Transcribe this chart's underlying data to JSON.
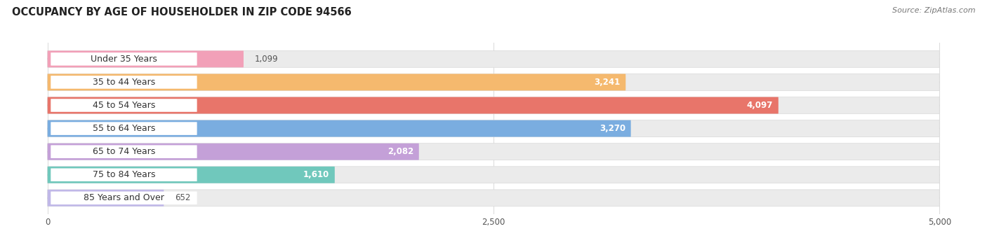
{
  "title": "OCCUPANCY BY AGE OF HOUSEHOLDER IN ZIP CODE 94566",
  "source": "Source: ZipAtlas.com",
  "categories": [
    "Under 35 Years",
    "35 to 44 Years",
    "45 to 54 Years",
    "55 to 64 Years",
    "65 to 74 Years",
    "75 to 84 Years",
    "85 Years and Over"
  ],
  "values": [
    1099,
    3241,
    4097,
    3270,
    2082,
    1610,
    652
  ],
  "bar_colors": [
    "#f2a0b8",
    "#f5b96e",
    "#e8756a",
    "#7aade0",
    "#c4a0d8",
    "#70c8bc",
    "#c0b8e8"
  ],
  "xlim_min": 0,
  "xlim_max": 5000,
  "xticks": [
    0,
    2500,
    5000
  ],
  "bar_height": 0.72,
  "label_bg_color": "#ffffff",
  "track_color": "#ebebeb",
  "fig_bg_color": "#ffffff",
  "title_fontsize": 10.5,
  "label_fontsize": 9,
  "value_fontsize": 8.5,
  "source_fontsize": 8,
  "tick_fontsize": 8.5
}
